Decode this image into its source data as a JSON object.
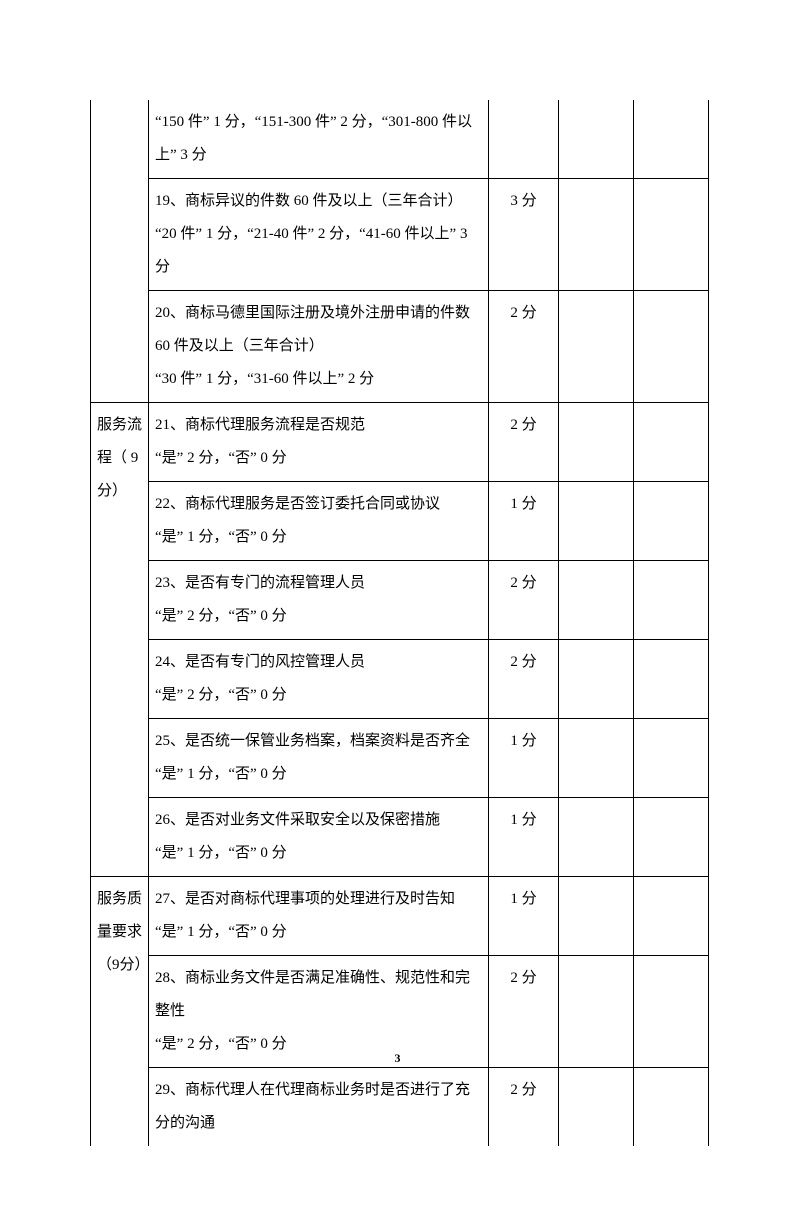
{
  "page_number": "3",
  "sections": [
    {
      "category": "",
      "rows": [
        {
          "desc": "“150 件” 1 分，“151-300 件” 2 分，“301-800 件以上” 3 分",
          "score": ""
        },
        {
          "desc": "19、商标异议的件数 60 件及以上（三年合计）\n“20 件” 1 分，“21-40 件” 2 分，“41-60 件以上” 3 分",
          "score": "3 分"
        },
        {
          "desc": "20、商标马德里国际注册及境外注册申请的件数 60 件及以上（三年合计）\n“30 件” 1 分，“31-60 件以上” 2 分",
          "score": "2 分"
        }
      ]
    },
    {
      "category": "服务流程（ 9分）",
      "rows": [
        {
          "desc": "21、商标代理服务流程是否规范\n“是” 2 分，“否” 0 分",
          "score": "2 分"
        },
        {
          "desc": "22、商标代理服务是否签订委托合同或协议\n“是” 1 分，“否” 0 分",
          "score": "1 分"
        },
        {
          "desc": "23、是否有专门的流程管理人员\n“是” 2 分，“否” 0 分",
          "score": "2 分"
        },
        {
          "desc": "24、是否有专门的风控管理人员\n“是” 2 分，“否” 0 分",
          "score": "2 分"
        },
        {
          "desc": "25、是否统一保管业务档案，档案资料是否齐全\n“是” 1 分，“否” 0 分",
          "score": "1 分"
        },
        {
          "desc": "26、是否对业务文件采取安全以及保密措施\n“是” 1 分，“否” 0 分",
          "score": "1 分"
        }
      ]
    },
    {
      "category": "服务质量要求（9分）",
      "rows": [
        {
          "desc": "27、是否对商标代理事项的处理进行及时告知\n“是” 1 分，“否” 0 分",
          "score": "1 分"
        },
        {
          "desc": "28、商标业务文件是否满足准确性、规范性和完整性\n“是” 2 分，“否” 0 分",
          "score": "2 分"
        },
        {
          "desc": "29、商标代理人在代理商标业务时是否进行了充分的沟通",
          "score": "2 分"
        }
      ]
    }
  ]
}
